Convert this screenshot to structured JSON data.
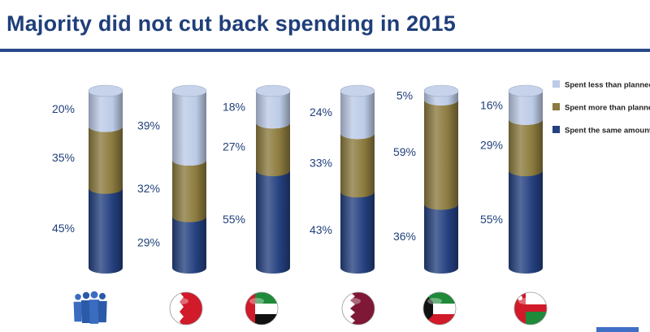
{
  "title": "Majority did not cut back spending in 2015",
  "colors": {
    "title": "#1f3f7a",
    "Spent less than planned": "#bccbe6",
    "Spent more than planned": "#8b7a3e",
    "Spent the same amount": "#24407f"
  },
  "chart_data": {
    "type": "bar",
    "stacked": true,
    "categories": [
      "",
      "",
      "",
      "",
      "",
      ""
    ],
    "category_icons": [
      "people-silhouette-icon",
      "bahrain-flag-icon",
      "uae-flag-icon",
      "qatar-flag-icon",
      "kuwait-flag-icon",
      "oman-flag-icon"
    ],
    "series": [
      {
        "name": "Spent the same amount",
        "values": [
          45,
          29,
          55,
          43,
          36,
          55
        ]
      },
      {
        "name": "Spent more than planned",
        "values": [
          35,
          32,
          27,
          33,
          59,
          29
        ]
      },
      {
        "name": "Spent less than planned",
        "values": [
          20,
          39,
          18,
          24,
          5,
          16
        ]
      }
    ],
    "labels": [
      [
        "45%",
        "35%",
        "20%"
      ],
      [
        "29%",
        "32%",
        "39%"
      ],
      [
        "55%",
        "27%",
        "18%"
      ],
      [
        "43%",
        "33%",
        "24%"
      ],
      [
        "36%",
        "59%",
        "5%"
      ],
      [
        "55%",
        "29%",
        "16%"
      ]
    ],
    "ylim": [
      0,
      100
    ],
    "legend_order": [
      "Spent less than planned",
      "Spent more than planned",
      "Spent the same amount"
    ],
    "legend_position": "right",
    "grid": false,
    "style": "3d-cylinder"
  }
}
